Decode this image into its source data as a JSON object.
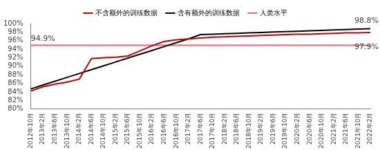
{
  "chart_data": {
    "type": "line",
    "categories": [
      "2012年10月",
      "2013年2月",
      "2013年6月",
      "2013年10月",
      "2014年2月",
      "2014年6月",
      "2014年10月",
      "2015年2月",
      "2015年6月",
      "2015年10月",
      "2016年2月",
      "2016年6月",
      "2016年10月",
      "2017年2月",
      "2017年6月",
      "2017年10月",
      "2018年2月",
      "2018年6月",
      "2018年10月",
      "2019年2月",
      "2019年6月",
      "2019年10月",
      "2020年2月",
      "2020年6月",
      "2020年10月",
      "2021年2月",
      "2021年6月",
      "2021年10月",
      "2022年2月"
    ],
    "series": [
      {
        "name": "不含额外的训练数据",
        "color": "#c00000",
        "values": [
          84.2,
          85.2,
          85.8,
          86.3,
          87.0,
          91.8,
          92.0,
          92.1,
          92.4,
          93.6,
          94.8,
          95.8,
          96.2,
          96.4,
          96.6,
          96.8,
          96.9,
          97.0,
          97.1,
          97.2,
          97.3,
          97.4,
          97.5,
          97.5,
          97.6,
          97.7,
          97.8,
          97.8,
          97.9
        ]
      },
      {
        "name": "含有额外的训练数据",
        "color": "#000000",
        "values": [
          84.7,
          85.6,
          86.5,
          87.4,
          88.3,
          89.2,
          90.1,
          91.0,
          91.9,
          92.8,
          93.7,
          94.6,
          95.5,
          96.4,
          97.4,
          97.5,
          97.6,
          97.7,
          97.8,
          97.9,
          98.0,
          98.1,
          98.2,
          98.3,
          98.4,
          98.5,
          98.6,
          98.7,
          98.8
        ]
      },
      {
        "name": "人类水平",
        "color": "#f0607a",
        "values": [
          94.9,
          94.9,
          94.9,
          94.9,
          94.9,
          94.9,
          94.9,
          94.9,
          94.9,
          94.9,
          94.9,
          94.9,
          94.9,
          94.9,
          94.9,
          94.9,
          94.9,
          94.9,
          94.9,
          94.9,
          94.9,
          94.9,
          94.9,
          94.9,
          94.9,
          94.9,
          94.9,
          94.9,
          94.9
        ]
      }
    ],
    "ylim": [
      80,
      100
    ],
    "yticks": [
      {
        "value": 80,
        "label": "80%"
      },
      {
        "value": 82,
        "label": "82%"
      },
      {
        "value": 84,
        "label": "84%"
      },
      {
        "value": 86,
        "label": "86%"
      },
      {
        "value": 88,
        "label": "88%"
      },
      {
        "value": 90,
        "label": "90%"
      },
      {
        "value": 92,
        "label": "92%"
      },
      {
        "value": 94,
        "label": "94%"
      },
      {
        "value": 96,
        "label": "96%"
      },
      {
        "value": 98,
        "label": "98%"
      },
      {
        "value": 100,
        "label": "100%"
      }
    ],
    "annotations": [
      {
        "text": "94.9%",
        "series": "人类水平",
        "x": "2013年2月"
      },
      {
        "text": "98.8%",
        "series": "含有额外的训练数据",
        "x": "2022年2月"
      },
      {
        "text": "97.9%",
        "series": "不含额外的训练数据",
        "x": "2022年2月"
      }
    ],
    "grid": false,
    "legend": "top"
  }
}
